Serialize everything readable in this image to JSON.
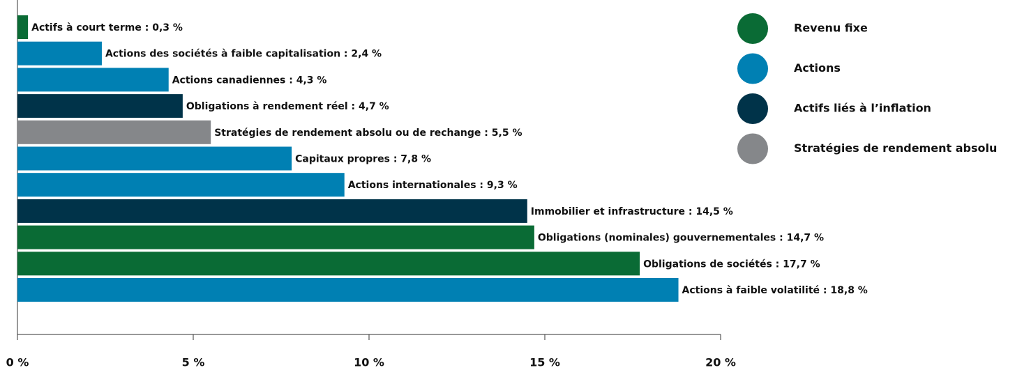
{
  "chart_data": {
    "type": "barh",
    "values": [
      0.3,
      2.4,
      4.3,
      4.7,
      5.5,
      7.8,
      9.3,
      14.5,
      14.7,
      17.7,
      18.8
    ],
    "value_labels": [
      "Actifs à court terme : 0,3 %",
      "Actions des sociétés à faible capitalisation : 2,4 %",
      "Actions canadiennes : 4,3 %",
      "Obligations à rendement réel : 4,7 %",
      "Stratégies de rendement absolu ou de rechange : 5,5 %",
      "Capitaux propres : 7,8 %",
      "Actions internationales : 9,3 %",
      "Immobilier et infrastructure : 14,5 %",
      "Obligations (nominales) gouvernementales : 14,7 %",
      "Obligations de sociétés : 17,7 %",
      "Actions à faible volatilité : 18,8 %"
    ],
    "colors": [
      "#0a6b35",
      "#0080b3",
      "#0080b3",
      "#003349",
      "#85878a",
      "#0080b3",
      "#0080b3",
      "#003349",
      "#0a6b35",
      "#0a6b35",
      "#0080b3"
    ],
    "legend": [
      {
        "name": "Revenu fixe",
        "color": "#0a6b35"
      },
      {
        "name": "Actions",
        "color": "#0080b3"
      },
      {
        "name": "Actifs liés à l’inflation",
        "color": "#003349"
      },
      {
        "name": "Stratégies de rendement absolu",
        "color": "#85878a"
      }
    ],
    "xlim": [
      0,
      20
    ],
    "xticks": [
      {
        "value": 0,
        "label": "0 %"
      },
      {
        "value": 5,
        "label": "5 %"
      },
      {
        "value": 10,
        "label": "10 %"
      },
      {
        "value": 15,
        "label": "15 %"
      },
      {
        "value": 20,
        "label": "20 %"
      }
    ]
  }
}
